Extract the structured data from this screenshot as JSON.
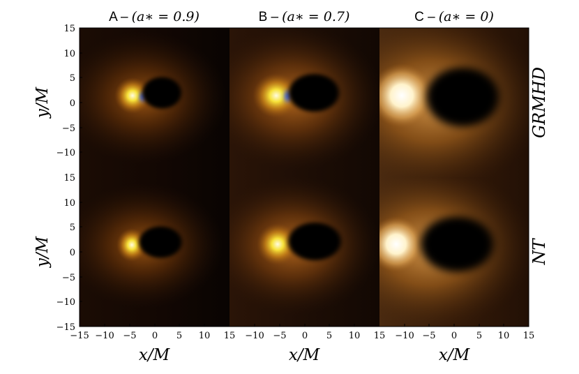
{
  "panel_titles": [
    {
      "letter": "A –",
      "expr": "(a∗ = 0.9)"
    },
    {
      "letter": "B –",
      "expr": "(a∗ = 0.7)"
    },
    {
      "letter": "C –",
      "expr": "(a∗ = 0)"
    }
  ],
  "row_labels": [
    "GRMHD",
    "NT"
  ],
  "x_axis_label": "x/M",
  "y_axis_label": "y/M",
  "x_ticks": [
    "−15",
    "−10",
    "−5",
    "0",
    "5",
    "10",
    "15"
  ],
  "y_ticks": [
    "15",
    "10",
    "5",
    "0",
    "−5",
    "−10",
    "−15"
  ],
  "x_ticks_inner": [
    "−10",
    "−5",
    "0",
    "5",
    "10",
    "15"
  ],
  "colors": {
    "shadow": "#000000",
    "glow_hot": "#ffffff",
    "glow_yellow": "#f7e23a",
    "glow_orange": "#c06a10",
    "glow_dark": "#2a1406",
    "blue_edge": "#2a5cff"
  }
}
